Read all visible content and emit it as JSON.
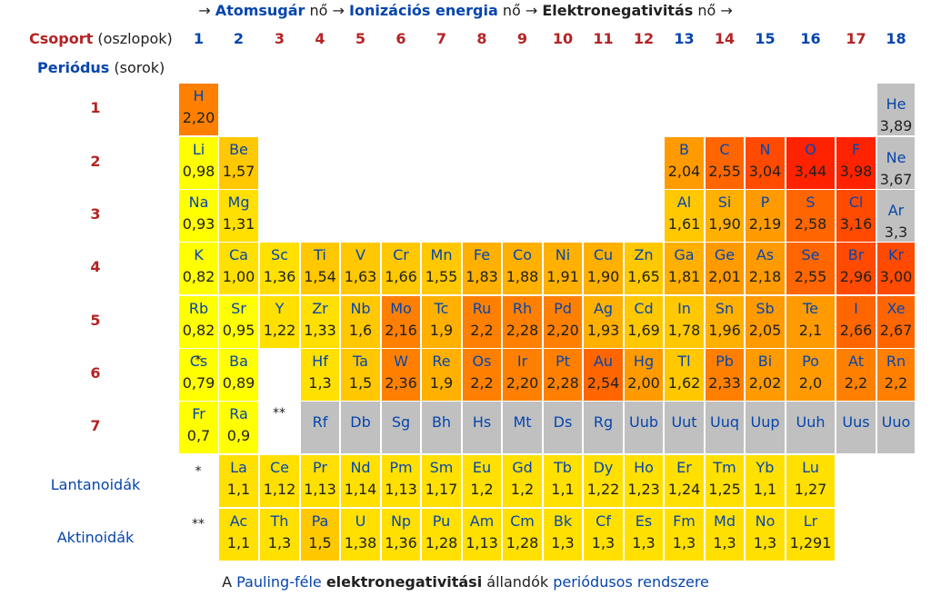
{
  "header": {
    "arrow1": "→ ",
    "atomic_radius": "Atomsugár",
    "grows1": " nő → ",
    "ionization": "Ionizációs energia",
    "grows2": " nő → ",
    "electronegativity": "Elektronegativitás",
    "grows3": " nő →"
  },
  "group_label": {
    "name": "Csoport",
    "suffix": " (oszlopok)"
  },
  "period_label": {
    "name": "Periódus",
    "suffix": " (sorok)"
  },
  "caption": {
    "prefix": "A ",
    "pauling": "Pauling-féle",
    "space1": " ",
    "en": "elektronegativitási",
    "mid": " állandók ",
    "periodic": "periódusos rendszere"
  },
  "colors": {
    "c1": "#ffff00",
    "c2": "#ffe000",
    "c3": "#ffc800",
    "c4": "#ffb000",
    "c5": "#ff9a00",
    "c6": "#ff8000",
    "c7": "#ff6600",
    "c8": "#ff4a00",
    "c9": "#ff2200",
    "missing": "#c0c0c0"
  },
  "chart_data": {
    "type": "table",
    "groups": [
      "1",
      "2",
      "3",
      "4",
      "5",
      "6",
      "7",
      "8",
      "9",
      "10",
      "11",
      "12",
      "13",
      "14",
      "15",
      "16",
      "17",
      "18"
    ],
    "periods": [
      "1",
      "2",
      "3",
      "4",
      "5",
      "6",
      "7"
    ],
    "series_labels": {
      "lanthanides": "Lantanoidák",
      "actinides": "Aktinoidák"
    },
    "lanthanide_marker": "*",
    "actinide_marker": "**",
    "elements": [
      {
        "s": "H",
        "v": "2,20",
        "p": 1,
        "g": 1,
        "c": "c6"
      },
      {
        "s": "He",
        "v": "3,89",
        "p": 1,
        "g": 18,
        "c": "missing"
      },
      {
        "s": "Li",
        "v": "0,98",
        "p": 2,
        "g": 1,
        "c": "c1"
      },
      {
        "s": "Be",
        "v": "1,57",
        "p": 2,
        "g": 2,
        "c": "c3"
      },
      {
        "s": "B",
        "v": "2,04",
        "p": 2,
        "g": 13,
        "c": "c5"
      },
      {
        "s": "C",
        "v": "2,55",
        "p": 2,
        "g": 14,
        "c": "c7"
      },
      {
        "s": "N",
        "v": "3,04",
        "p": 2,
        "g": 15,
        "c": "c8"
      },
      {
        "s": "O",
        "v": "3,44",
        "p": 2,
        "g": 16,
        "c": "c9"
      },
      {
        "s": "F",
        "v": "3,98",
        "p": 2,
        "g": 17,
        "c": "c9"
      },
      {
        "s": "Ne",
        "v": "3,67",
        "p": 2,
        "g": 18,
        "c": "missing"
      },
      {
        "s": "Na",
        "v": "0,93",
        "p": 3,
        "g": 1,
        "c": "c1"
      },
      {
        "s": "Mg",
        "v": "1,31",
        "p": 3,
        "g": 2,
        "c": "c2"
      },
      {
        "s": "Al",
        "v": "1,61",
        "p": 3,
        "g": 13,
        "c": "c3"
      },
      {
        "s": "Si",
        "v": "1,90",
        "p": 3,
        "g": 14,
        "c": "c4"
      },
      {
        "s": "P",
        "v": "2,19",
        "p": 3,
        "g": 15,
        "c": "c5"
      },
      {
        "s": "S",
        "v": "2,58",
        "p": 3,
        "g": 16,
        "c": "c7"
      },
      {
        "s": "Cl",
        "v": "3,16",
        "p": 3,
        "g": 17,
        "c": "c8"
      },
      {
        "s": "Ar",
        "v": "3,3",
        "p": 3,
        "g": 18,
        "c": "missing"
      },
      {
        "s": "K",
        "v": "0,82",
        "p": 4,
        "g": 1,
        "c": "c1"
      },
      {
        "s": "Ca",
        "v": "1,00",
        "p": 4,
        "g": 2,
        "c": "c2"
      },
      {
        "s": "Sc",
        "v": "1,36",
        "p": 4,
        "g": 3,
        "c": "c2"
      },
      {
        "s": "Ti",
        "v": "1,54",
        "p": 4,
        "g": 4,
        "c": "c3"
      },
      {
        "s": "V",
        "v": "1,63",
        "p": 4,
        "g": 5,
        "c": "c3"
      },
      {
        "s": "Cr",
        "v": "1,66",
        "p": 4,
        "g": 6,
        "c": "c3"
      },
      {
        "s": "Mn",
        "v": "1,55",
        "p": 4,
        "g": 7,
        "c": "c3"
      },
      {
        "s": "Fe",
        "v": "1,83",
        "p": 4,
        "g": 8,
        "c": "c4"
      },
      {
        "s": "Co",
        "v": "1,88",
        "p": 4,
        "g": 9,
        "c": "c4"
      },
      {
        "s": "Ni",
        "v": "1,91",
        "p": 4,
        "g": 10,
        "c": "c4"
      },
      {
        "s": "Cu",
        "v": "1,90",
        "p": 4,
        "g": 11,
        "c": "c4"
      },
      {
        "s": "Zn",
        "v": "1,65",
        "p": 4,
        "g": 12,
        "c": "c3"
      },
      {
        "s": "Ga",
        "v": "1,81",
        "p": 4,
        "g": 13,
        "c": "c4"
      },
      {
        "s": "Ge",
        "v": "2,01",
        "p": 4,
        "g": 14,
        "c": "c5"
      },
      {
        "s": "As",
        "v": "2,18",
        "p": 4,
        "g": 15,
        "c": "c5"
      },
      {
        "s": "Se",
        "v": "2,55",
        "p": 4,
        "g": 16,
        "c": "c7"
      },
      {
        "s": "Br",
        "v": "2,96",
        "p": 4,
        "g": 17,
        "c": "c8"
      },
      {
        "s": "Kr",
        "v": "3,00",
        "p": 4,
        "g": 18,
        "c": "c8"
      },
      {
        "s": "Rb",
        "v": "0,82",
        "p": 5,
        "g": 1,
        "c": "c1"
      },
      {
        "s": "Sr",
        "v": "0,95",
        "p": 5,
        "g": 2,
        "c": "c1"
      },
      {
        "s": "Y",
        "v": "1,22",
        "p": 5,
        "g": 3,
        "c": "c2"
      },
      {
        "s": "Zr",
        "v": "1,33",
        "p": 5,
        "g": 4,
        "c": "c2"
      },
      {
        "s": "Nb",
        "v": "1,6",
        "p": 5,
        "g": 5,
        "c": "c3"
      },
      {
        "s": "Mo",
        "v": "2,16",
        "p": 5,
        "g": 6,
        "c": "c6"
      },
      {
        "s": "Tc",
        "v": "1,9",
        "p": 5,
        "g": 7,
        "c": "c4"
      },
      {
        "s": "Ru",
        "v": "2,2",
        "p": 5,
        "g": 8,
        "c": "c6"
      },
      {
        "s": "Rh",
        "v": "2,28",
        "p": 5,
        "g": 9,
        "c": "c6"
      },
      {
        "s": "Pd",
        "v": "2,20",
        "p": 5,
        "g": 10,
        "c": "c6"
      },
      {
        "s": "Ag",
        "v": "1,93",
        "p": 5,
        "g": 11,
        "c": "c4"
      },
      {
        "s": "Cd",
        "v": "1,69",
        "p": 5,
        "g": 12,
        "c": "c3"
      },
      {
        "s": "In",
        "v": "1,78",
        "p": 5,
        "g": 13,
        "c": "c3"
      },
      {
        "s": "Sn",
        "v": "1,96",
        "p": 5,
        "g": 14,
        "c": "c4"
      },
      {
        "s": "Sb",
        "v": "2,05",
        "p": 5,
        "g": 15,
        "c": "c5"
      },
      {
        "s": "Te",
        "v": "2,1",
        "p": 5,
        "g": 16,
        "c": "c5"
      },
      {
        "s": "I",
        "v": "2,66",
        "p": 5,
        "g": 17,
        "c": "c7"
      },
      {
        "s": "Xe",
        "v": "2,67",
        "p": 5,
        "g": 18,
        "c": "c7"
      },
      {
        "s": "Cs",
        "v": "0,79",
        "p": 6,
        "g": 1,
        "c": "c1"
      },
      {
        "s": "Ba",
        "v": "0,89",
        "p": 6,
        "g": 2,
        "c": "c1"
      },
      {
        "s": "Hf",
        "v": "1,3",
        "p": 6,
        "g": 4,
        "c": "c2"
      },
      {
        "s": "Ta",
        "v": "1,5",
        "p": 6,
        "g": 5,
        "c": "c3"
      },
      {
        "s": "W",
        "v": "2,36",
        "p": 6,
        "g": 6,
        "c": "c6"
      },
      {
        "s": "Re",
        "v": "1,9",
        "p": 6,
        "g": 7,
        "c": "c4"
      },
      {
        "s": "Os",
        "v": "2,2",
        "p": 6,
        "g": 8,
        "c": "c6"
      },
      {
        "s": "Ir",
        "v": "2,20",
        "p": 6,
        "g": 9,
        "c": "c6"
      },
      {
        "s": "Pt",
        "v": "2,28",
        "p": 6,
        "g": 10,
        "c": "c6"
      },
      {
        "s": "Au",
        "v": "2,54",
        "p": 6,
        "g": 11,
        "c": "c7"
      },
      {
        "s": "Hg",
        "v": "2,00",
        "p": 6,
        "g": 12,
        "c": "c5"
      },
      {
        "s": "Tl",
        "v": "1,62",
        "p": 6,
        "g": 13,
        "c": "c3"
      },
      {
        "s": "Pb",
        "v": "2,33",
        "p": 6,
        "g": 14,
        "c": "c6"
      },
      {
        "s": "Bi",
        "v": "2,02",
        "p": 6,
        "g": 15,
        "c": "c5"
      },
      {
        "s": "Po",
        "v": "2,0",
        "p": 6,
        "g": 16,
        "c": "c5"
      },
      {
        "s": "At",
        "v": "2,2",
        "p": 6,
        "g": 17,
        "c": "c6"
      },
      {
        "s": "Rn",
        "v": "2,2",
        "p": 6,
        "g": 18,
        "c": "c6"
      },
      {
        "s": "Fr",
        "v": "0,7",
        "p": 7,
        "g": 1,
        "c": "c1"
      },
      {
        "s": "Ra",
        "v": "0,9",
        "p": 7,
        "g": 2,
        "c": "c1"
      },
      {
        "s": "Rf",
        "v": "",
        "p": 7,
        "g": 4,
        "c": "missing"
      },
      {
        "s": "Db",
        "v": "",
        "p": 7,
        "g": 5,
        "c": "missing"
      },
      {
        "s": "Sg",
        "v": "",
        "p": 7,
        "g": 6,
        "c": "missing"
      },
      {
        "s": "Bh",
        "v": "",
        "p": 7,
        "g": 7,
        "c": "missing"
      },
      {
        "s": "Hs",
        "v": "",
        "p": 7,
        "g": 8,
        "c": "missing"
      },
      {
        "s": "Mt",
        "v": "",
        "p": 7,
        "g": 9,
        "c": "missing"
      },
      {
        "s": "Ds",
        "v": "",
        "p": 7,
        "g": 10,
        "c": "missing"
      },
      {
        "s": "Rg",
        "v": "",
        "p": 7,
        "g": 11,
        "c": "missing"
      },
      {
        "s": "Uub",
        "v": "",
        "p": 7,
        "g": 12,
        "c": "missing"
      },
      {
        "s": "Uut",
        "v": "",
        "p": 7,
        "g": 13,
        "c": "missing"
      },
      {
        "s": "Uuq",
        "v": "",
        "p": 7,
        "g": 14,
        "c": "missing"
      },
      {
        "s": "Uup",
        "v": "",
        "p": 7,
        "g": 15,
        "c": "missing"
      },
      {
        "s": "Uuh",
        "v": "",
        "p": 7,
        "g": 16,
        "c": "missing"
      },
      {
        "s": "Uus",
        "v": "",
        "p": 7,
        "g": 17,
        "c": "missing"
      },
      {
        "s": "Uuo",
        "v": "",
        "p": 7,
        "g": 18,
        "c": "missing"
      }
    ],
    "lanthanides": [
      {
        "s": "La",
        "v": "1,1",
        "c": "c2"
      },
      {
        "s": "Ce",
        "v": "1,12",
        "c": "c2"
      },
      {
        "s": "Pr",
        "v": "1,13",
        "c": "c2"
      },
      {
        "s": "Nd",
        "v": "1,14",
        "c": "c2"
      },
      {
        "s": "Pm",
        "v": "1,13",
        "c": "c2"
      },
      {
        "s": "Sm",
        "v": "1,17",
        "c": "c2"
      },
      {
        "s": "Eu",
        "v": "1,2",
        "c": "c2"
      },
      {
        "s": "Gd",
        "v": "1,2",
        "c": "c2"
      },
      {
        "s": "Tb",
        "v": "1,1",
        "c": "c2"
      },
      {
        "s": "Dy",
        "v": "1,22",
        "c": "c2"
      },
      {
        "s": "Ho",
        "v": "1,23",
        "c": "c2"
      },
      {
        "s": "Er",
        "v": "1,24",
        "c": "c2"
      },
      {
        "s": "Tm",
        "v": "1,25",
        "c": "c2"
      },
      {
        "s": "Yb",
        "v": "1,1",
        "c": "c2"
      },
      {
        "s": "Lu",
        "v": "1,27",
        "c": "c2"
      }
    ],
    "actinides": [
      {
        "s": "Ac",
        "v": "1,1",
        "c": "c2"
      },
      {
        "s": "Th",
        "v": "1,3",
        "c": "c2"
      },
      {
        "s": "Pa",
        "v": "1,5",
        "c": "c3"
      },
      {
        "s": "U",
        "v": "1,38",
        "c": "c2"
      },
      {
        "s": "Np",
        "v": "1,36",
        "c": "c2"
      },
      {
        "s": "Pu",
        "v": "1,28",
        "c": "c2"
      },
      {
        "s": "Am",
        "v": "1,13",
        "c": "c2"
      },
      {
        "s": "Cm",
        "v": "1,28",
        "c": "c2"
      },
      {
        "s": "Bk",
        "v": "1,3",
        "c": "c2"
      },
      {
        "s": "Cf",
        "v": "1,3",
        "c": "c2"
      },
      {
        "s": "Es",
        "v": "1,3",
        "c": "c2"
      },
      {
        "s": "Fm",
        "v": "1,3",
        "c": "c2"
      },
      {
        "s": "Md",
        "v": "1,3",
        "c": "c2"
      },
      {
        "s": "No",
        "v": "1,3",
        "c": "c2"
      },
      {
        "s": "Lr",
        "v": "1,291",
        "c": "c2"
      }
    ]
  }
}
